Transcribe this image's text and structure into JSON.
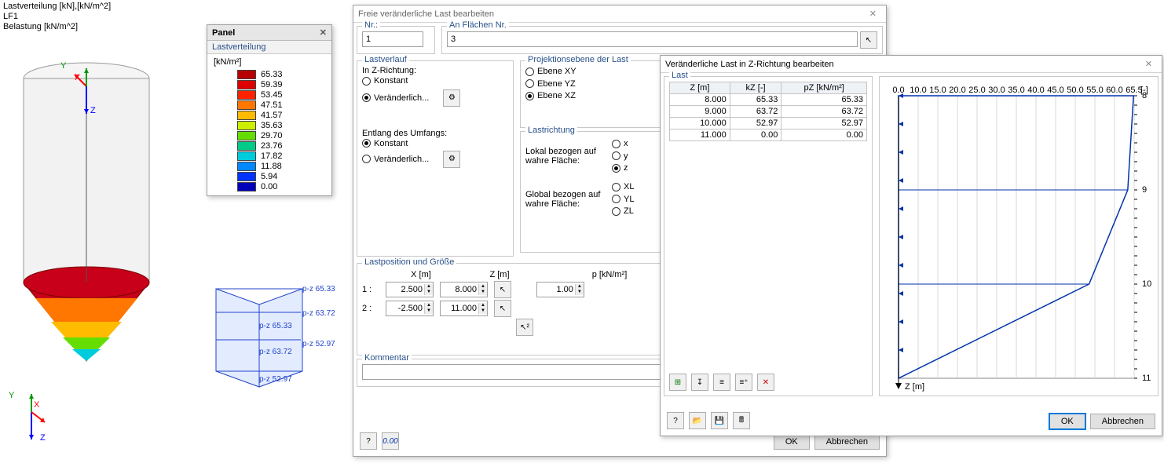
{
  "viewport_labels": {
    "l1": "Lastverteilung [kN],[kN/m^2]",
    "l2": "LF1",
    "l3": "Belastung [kN/m^2]"
  },
  "axes": {
    "x": "X",
    "y": "Y",
    "z": "Z"
  },
  "panel": {
    "title": "Panel",
    "sub": "Lastverteilung",
    "unit": "[kN/m²]",
    "items": [
      {
        "c": "#b80000",
        "v": "65.33"
      },
      {
        "c": "#dd0000",
        "v": "59.39"
      },
      {
        "c": "#ff2200",
        "v": "53.45"
      },
      {
        "c": "#ff7700",
        "v": "47.51"
      },
      {
        "c": "#ffbb00",
        "v": "41.57"
      },
      {
        "c": "#ccee00",
        "v": "35.63"
      },
      {
        "c": "#66dd00",
        "v": "29.70"
      },
      {
        "c": "#00cc88",
        "v": "23.76"
      },
      {
        "c": "#00ccdd",
        "v": "17.82"
      },
      {
        "c": "#0088ff",
        "v": "11.88"
      },
      {
        "c": "#0033ff",
        "v": "5.94"
      },
      {
        "c": "#0000bb",
        "v": "0.00"
      }
    ]
  },
  "load_labels": [
    "p-z 65.33",
    "p-z 65.33",
    "p-z 63.72",
    "p-z 63.72",
    "p-z 52.97",
    "p-z 52.97"
  ],
  "dlg1": {
    "title": "Freie veränderliche Last bearbeiten",
    "nr_lbl": "Nr.:",
    "nr": "1",
    "flaechen_lbl": "An Flächen Nr.",
    "flaechen": "3",
    "grp_lastverlauf": "Lastverlauf",
    "in_z": "In Z-Richtung:",
    "konstant": "Konstant",
    "veraenderlich": "Veränderlich...",
    "entlang": "Entlang des Umfangs:",
    "grp_proj": "Projektionsebene der Last",
    "e_xy": "Ebene XY",
    "e_yz": "Ebene YZ",
    "e_xz": "Ebene XZ",
    "grp_lr": "Lastrichtung",
    "lr_lokal": "Lokal bezogen auf wahre Fläche:",
    "lr_global": "Global bezogen auf wahre Fläche:",
    "lx": "x",
    "ly": "y",
    "lz": "z",
    "gxl": "XL",
    "gyl": "YL",
    "gzl": "ZL",
    "grp_pos": "Lastposition und Größe",
    "x_m": "X  [m]",
    "z_m": "Z  [m]",
    "p_kn": "p  [kN/m²]",
    "p1": "1 :",
    "p1x": "2.500",
    "p1z": "8.000",
    "p1p": "1.00",
    "p2": "2 :",
    "p2x": "-2.500",
    "p2z": "11.000",
    "grp_kom": "Kommentar",
    "kom": "",
    "ok": "OK",
    "cancel": "Abbrechen"
  },
  "dlg2": {
    "title": "Veränderliche Last in Z-Richtung bearbeiten",
    "ok": "OK",
    "cancel": "Abbrechen",
    "grp_last": "Last",
    "hz": "Z [m]",
    "hk": "kZ [-]",
    "hp": "pZ [kN/m²]",
    "rows": [
      [
        "8.000",
        "65.33",
        "65.33"
      ],
      [
        "9.000",
        "63.72",
        "63.72"
      ],
      [
        "10.000",
        "52.97",
        "52.97"
      ],
      [
        "11.000",
        "0.00",
        "0.00"
      ]
    ],
    "chart": {
      "xticks": [
        "0.0",
        "10.0",
        "15.0",
        "20.0",
        "25.0",
        "30.0",
        "35.0",
        "40.0",
        "45.0",
        "50.0",
        "55.0",
        "60.0",
        "65.5"
      ],
      "xunit": "[-]",
      "ylabel": "Z [m]",
      "yrange": [
        8,
        11
      ],
      "line_color": "#0033aa",
      "grid_color": "#d8d8d8",
      "bg": "#ffffff"
    }
  }
}
